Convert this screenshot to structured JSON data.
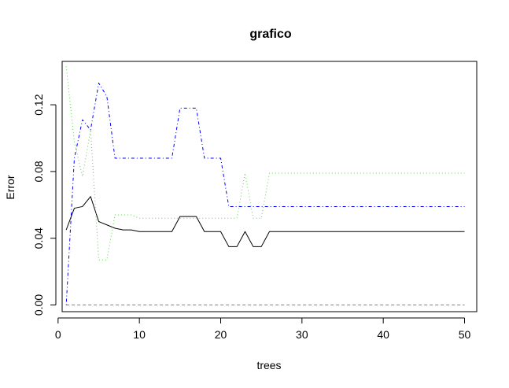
{
  "chart_data": {
    "type": "line",
    "title": "grafico",
    "xlabel": "trees",
    "ylabel": "Error",
    "xlim": [
      0.5,
      51.5
    ],
    "ylim": [
      -0.004,
      0.146
    ],
    "xticks": [
      0,
      10,
      20,
      30,
      40,
      50
    ],
    "xtick_labels": [
      "0",
      "10",
      "20",
      "30",
      "40",
      "50"
    ],
    "yticks": [
      0.0,
      0.04,
      0.08,
      0.12
    ],
    "ytick_labels": [
      "0.00",
      "0.04",
      "0.08",
      "0.12"
    ],
    "grid": false,
    "series": [
      {
        "color": "#000000",
        "dash": "solid",
        "x": [
          1,
          2,
          3,
          4,
          5,
          6,
          7,
          8,
          9,
          10,
          11,
          12,
          13,
          14,
          15,
          16,
          17,
          18,
          19,
          20,
          21,
          22,
          23,
          24,
          25,
          26,
          27,
          28,
          29,
          30,
          31,
          32,
          33,
          34,
          35,
          36,
          37,
          38,
          39,
          40,
          41,
          42,
          43,
          44,
          45,
          46,
          47,
          48,
          49,
          50
        ],
        "y": [
          0.045,
          0.058,
          0.059,
          0.065,
          0.05,
          0.048,
          0.046,
          0.045,
          0.045,
          0.044,
          0.044,
          0.044,
          0.044,
          0.044,
          0.053,
          0.053,
          0.053,
          0.044,
          0.044,
          0.044,
          0.035,
          0.035,
          0.044,
          0.035,
          0.035,
          0.044,
          0.044,
          0.044,
          0.044,
          0.044,
          0.044,
          0.044,
          0.044,
          0.044,
          0.044,
          0.044,
          0.044,
          0.044,
          0.044,
          0.044,
          0.044,
          0.044,
          0.044,
          0.044,
          0.044,
          0.044,
          0.044,
          0.044,
          0.044,
          0.044
        ]
      },
      {
        "color": "#df536b",
        "dash": "dashed",
        "x": [
          1,
          50
        ],
        "y": [
          0.0,
          0.0
        ]
      },
      {
        "color": "#61d04f",
        "dash": "dotted",
        "x": [
          1,
          2,
          3,
          4,
          5,
          6,
          7,
          8,
          9,
          10,
          11,
          12,
          13,
          14,
          15,
          16,
          17,
          18,
          19,
          20,
          21,
          22,
          23,
          24,
          25,
          26,
          27,
          28,
          29,
          30,
          31,
          32,
          33,
          34,
          35,
          36,
          37,
          38,
          39,
          40,
          41,
          42,
          43,
          44,
          45,
          46,
          47,
          48,
          49,
          50
        ],
        "y": [
          0.143,
          0.098,
          0.077,
          0.105,
          0.027,
          0.027,
          0.054,
          0.054,
          0.054,
          0.052,
          0.052,
          0.052,
          0.052,
          0.052,
          0.052,
          0.052,
          0.052,
          0.052,
          0.052,
          0.052,
          0.052,
          0.052,
          0.079,
          0.052,
          0.052,
          0.079,
          0.079,
          0.079,
          0.079,
          0.079,
          0.079,
          0.079,
          0.079,
          0.079,
          0.079,
          0.079,
          0.079,
          0.079,
          0.079,
          0.079,
          0.079,
          0.079,
          0.079,
          0.079,
          0.079,
          0.079,
          0.079,
          0.079,
          0.079,
          0.079
        ]
      },
      {
        "color": "#2297e6",
        "stroke": "#0000ff",
        "dash": "dashdot",
        "x": [
          1,
          2,
          3,
          4,
          5,
          6,
          7,
          8,
          9,
          10,
          11,
          12,
          13,
          14,
          15,
          16,
          17,
          18,
          19,
          20,
          21,
          22,
          23,
          24,
          25,
          26,
          27,
          28,
          29,
          30,
          31,
          32,
          33,
          34,
          35,
          36,
          37,
          38,
          39,
          40,
          41,
          42,
          43,
          44,
          45,
          46,
          47,
          48,
          49,
          50
        ],
        "y": [
          0.0,
          0.088,
          0.111,
          0.105,
          0.133,
          0.125,
          0.088,
          0.088,
          0.088,
          0.088,
          0.088,
          0.088,
          0.088,
          0.088,
          0.118,
          0.118,
          0.118,
          0.088,
          0.088,
          0.088,
          0.059,
          0.059,
          0.059,
          0.059,
          0.059,
          0.059,
          0.059,
          0.059,
          0.059,
          0.059,
          0.059,
          0.059,
          0.059,
          0.059,
          0.059,
          0.059,
          0.059,
          0.059,
          0.059,
          0.059,
          0.059,
          0.059,
          0.059,
          0.059,
          0.059,
          0.059,
          0.059,
          0.059,
          0.059,
          0.059
        ]
      }
    ]
  }
}
